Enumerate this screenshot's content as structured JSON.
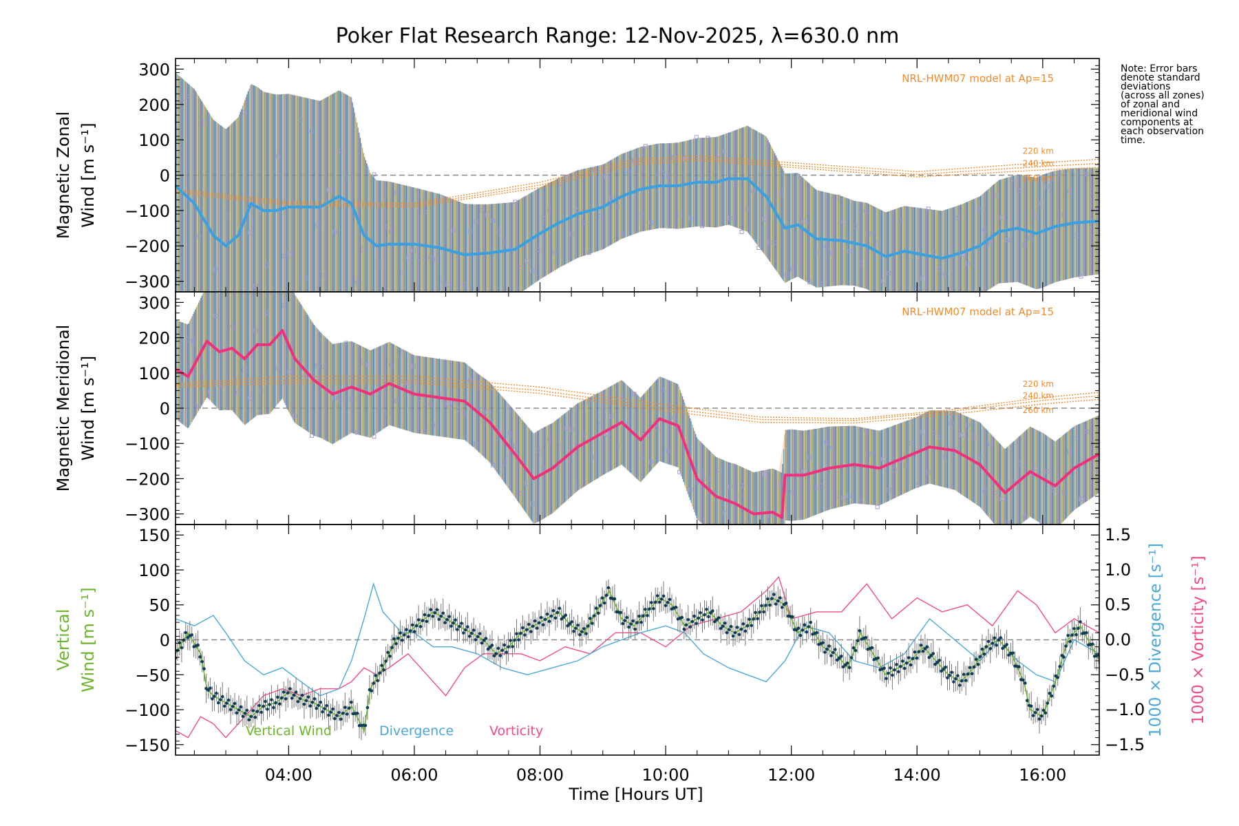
{
  "chart_data": {
    "title": "Poker Flat Research Range: 12-Nov-2025, λ=630.0 nm",
    "xlabel": "Time [Hours UT]",
    "xlim": [
      2.2,
      16.9
    ],
    "x_ticks": [
      4,
      6,
      8,
      10,
      12,
      14,
      16
    ],
    "x_tick_labels": [
      "04:00",
      "06:00",
      "08:00",
      "10:00",
      "12:00",
      "14:00",
      "16:00"
    ],
    "note": "Note: Error bars\ndenote standard\ndeviations\n(across all zones)\nof zonal and\nmeridional wind\ncomponents at\neach observation\ntime.",
    "colors": {
      "model": "#f08a28",
      "zonal_wind": "#3aa0e0",
      "meridional_wind": "#f0307a",
      "vertical_wind": "#6cb52c",
      "divergence": "#4aa8d8",
      "vorticity": "#f04a8a",
      "zone_points": "#a09ad0",
      "error_bars": "#4a6a8a"
    },
    "panels": [
      {
        "type": "line",
        "ylabel_line1": "Magnetic Zonal",
        "ylabel_line2": "Wind [m s⁻¹]",
        "ylim": [
          -330,
          330
        ],
        "y_ticks": [
          -300,
          -200,
          -100,
          0,
          100,
          200,
          300
        ],
        "y_tick_labels": [
          "−300",
          "−200",
          "−100",
          "0",
          "100",
          "200",
          "300"
        ],
        "model_label": "NRL-HWM07 model at Ap=15",
        "model_altitudes": [
          "220 km",
          "240 km",
          "260 km"
        ],
        "series": [
          {
            "name": "Zonal wind",
            "x": [
              2.2,
              2.5,
              2.8,
              3.0,
              3.2,
              3.4,
              3.6,
              3.8,
              4.0,
              4.2,
              4.5,
              4.8,
              5.0,
              5.2,
              5.4,
              5.6,
              6.0,
              6.4,
              6.8,
              7.2,
              7.6,
              8.0,
              8.3,
              8.6,
              9.0,
              9.3,
              9.6,
              9.9,
              10.2,
              10.5,
              10.8,
              11.0,
              11.3,
              11.6,
              11.9,
              12.1,
              12.4,
              12.8,
              13.2,
              13.5,
              13.8,
              14.1,
              14.4,
              14.7,
              15.0,
              15.3,
              15.6,
              15.9,
              16.2,
              16.5,
              16.9
            ],
            "values": [
              -30,
              -80,
              -170,
              -200,
              -170,
              -80,
              -100,
              -100,
              -90,
              -90,
              -90,
              -60,
              -80,
              -170,
              -200,
              -195,
              -195,
              -205,
              -225,
              -220,
              -210,
              -165,
              -135,
              -110,
              -90,
              -60,
              -40,
              -30,
              -30,
              -20,
              -20,
              -10,
              -10,
              -60,
              -150,
              -140,
              -180,
              -185,
              -200,
              -230,
              -215,
              -225,
              -235,
              -220,
              -200,
              -160,
              -150,
              -165,
              -145,
              -135,
              -130
            ]
          },
          {
            "name": "Model 220 km",
            "x": [
              2.2,
              4.0,
              6.0,
              8.0,
              9.5,
              10.5,
              12.0,
              14.0,
              16.0,
              16.9
            ],
            "values": [
              -40,
              -75,
              -80,
              -20,
              45,
              55,
              35,
              10,
              35,
              45
            ]
          },
          {
            "name": "Model 240 km",
            "x": [
              2.2,
              4.0,
              6.0,
              8.0,
              9.5,
              10.5,
              12.0,
              14.0,
              16.0,
              16.9
            ],
            "values": [
              -45,
              -80,
              -85,
              -28,
              38,
              48,
              28,
              2,
              25,
              33
            ]
          },
          {
            "name": "Model 260 km",
            "x": [
              2.2,
              4.0,
              6.0,
              8.0,
              9.5,
              10.5,
              12.0,
              14.0,
              16.0,
              16.9
            ],
            "values": [
              -50,
              -85,
              -90,
              -35,
              30,
              42,
              22,
              -5,
              15,
              22
            ]
          }
        ],
        "error_band": {
          "x": [
            2.2,
            3.0,
            3.5,
            4.0,
            4.5,
            5.0,
            5.3,
            6.0,
            7.0,
            8.0,
            9.0,
            10.0,
            11.0,
            11.6,
            12.0,
            13.0,
            14.0,
            15.0,
            16.0,
            16.9
          ],
          "half_width": [
            320,
            330,
            340,
            320,
            300,
            300,
            190,
            160,
            140,
            130,
            120,
            120,
            130,
            170,
            150,
            120,
            130,
            140,
            160,
            150
          ]
        }
      },
      {
        "type": "line",
        "ylabel_line1": "Magnetic Meridional",
        "ylabel_line2": "Wind [m s⁻¹]",
        "ylim": [
          -330,
          330
        ],
        "y_ticks": [
          -300,
          -200,
          -100,
          0,
          100,
          200,
          300
        ],
        "y_tick_labels": [
          "−300",
          "−200",
          "−100",
          "0",
          "100",
          "200",
          "300"
        ],
        "model_label": "NRL-HWM07 model at Ap=15",
        "model_altitudes": [
          "220 km",
          "240 km",
          "260 km"
        ],
        "series": [
          {
            "name": "Meridional wind",
            "x": [
              2.2,
              2.4,
              2.7,
              2.9,
              3.1,
              3.3,
              3.5,
              3.7,
              3.9,
              4.1,
              4.4,
              4.7,
              5.0,
              5.3,
              5.6,
              6.0,
              6.4,
              6.8,
              7.2,
              7.6,
              7.9,
              8.2,
              8.6,
              9.0,
              9.3,
              9.6,
              9.9,
              10.2,
              10.5,
              10.8,
              11.1,
              11.4,
              11.7,
              11.85,
              11.9,
              12.2,
              12.6,
              13.0,
              13.4,
              13.8,
              14.2,
              14.6,
              15.0,
              15.4,
              15.8,
              16.2,
              16.5,
              16.9
            ],
            "values": [
              110,
              90,
              190,
              160,
              170,
              140,
              180,
              180,
              220,
              140,
              80,
              40,
              60,
              40,
              70,
              40,
              30,
              20,
              -40,
              -130,
              -200,
              -170,
              -110,
              -70,
              -40,
              -90,
              -30,
              -50,
              -200,
              -250,
              -270,
              -300,
              -295,
              -310,
              -190,
              -190,
              -170,
              -160,
              -170,
              -140,
              -110,
              -120,
              -160,
              -240,
              -180,
              -220,
              -170,
              -130
            ]
          },
          {
            "name": "Model 220 km",
            "x": [
              2.2,
              4.0,
              6.0,
              8.0,
              10.0,
              11.5,
              13.0,
              14.5,
              16.0,
              16.9
            ],
            "values": [
              70,
              90,
              90,
              60,
              10,
              -25,
              -30,
              -5,
              30,
              45
            ]
          },
          {
            "name": "Model 240 km",
            "x": [
              2.2,
              4.0,
              6.0,
              8.0,
              10.0,
              11.5,
              13.0,
              14.5,
              16.0,
              16.9
            ],
            "values": [
              65,
              80,
              80,
              50,
              0,
              -32,
              -35,
              -10,
              22,
              35
            ]
          },
          {
            "name": "Model 260 km",
            "x": [
              2.2,
              4.0,
              6.0,
              8.0,
              10.0,
              11.5,
              13.0,
              14.5,
              16.0,
              16.9
            ],
            "values": [
              60,
              72,
              72,
              42,
              -8,
              -40,
              -42,
              -18,
              12,
              25
            ]
          }
        ],
        "error_band": {
          "x": [
            2.2,
            3.0,
            3.5,
            4.0,
            4.5,
            5.0,
            6.0,
            7.0,
            8.0,
            9.0,
            10.0,
            11.0,
            12.0,
            13.0,
            14.0,
            15.0,
            16.0,
            16.9
          ],
          "half_width": [
            140,
            170,
            200,
            190,
            150,
            130,
            110,
            110,
            130,
            120,
            120,
            110,
            130,
            110,
            100,
            120,
            130,
            110
          ]
        }
      },
      {
        "type": "line",
        "ylabel_line1": "Vertical",
        "ylabel_line2": "Wind [m s⁻¹]",
        "ylim": [
          -165,
          165
        ],
        "y_ticks": [
          -150,
          -100,
          -50,
          0,
          50,
          100,
          150
        ],
        "y_tick_labels": [
          "−150",
          "−100",
          "−50",
          "0",
          "50",
          "100",
          "150"
        ],
        "y2_label_divergence": "1000 × Divergence [s⁻¹]",
        "y2_label_vorticity": "1000 × Vorticity [s⁻¹]",
        "y2lim": [
          -1.65,
          1.65
        ],
        "y2_ticks": [
          -1.5,
          -1.0,
          -0.5,
          0.0,
          0.5,
          1.0,
          1.5
        ],
        "y2_tick_labels": [
          "−1.5",
          "−1.0",
          "−0.5",
          "0.0",
          "0.5",
          "1.0",
          "1.5"
        ],
        "legend": [
          "Vertical Wind",
          "Divergence",
          "Vorticity"
        ],
        "series": [
          {
            "name": "Vertical Wind",
            "x": [
              2.2,
              2.4,
              2.6,
              2.7,
              2.8,
              3.0,
              3.2,
              3.4,
              3.6,
              3.8,
              4.0,
              4.2,
              4.4,
              4.6,
              4.8,
              5.0,
              5.2,
              5.3,
              5.5,
              5.7,
              5.9,
              6.1,
              6.3,
              6.5,
              6.7,
              6.9,
              7.1,
              7.3,
              7.5,
              7.7,
              7.9,
              8.1,
              8.3,
              8.5,
              8.7,
              8.9,
              9.1,
              9.3,
              9.5,
              9.7,
              9.9,
              10.1,
              10.3,
              10.5,
              10.7,
              10.9,
              11.1,
              11.3,
              11.5,
              11.7,
              11.9,
              12.1,
              12.3,
              12.5,
              12.7,
              12.9,
              13.1,
              13.3,
              13.5,
              13.7,
              13.9,
              14.1,
              14.3,
              14.5,
              14.7,
              14.9,
              15.1,
              15.3,
              15.5,
              15.7,
              15.8,
              16.0,
              16.2,
              16.4,
              16.6,
              16.9
            ],
            "values": [
              -20,
              10,
              -20,
              -70,
              -80,
              -90,
              -100,
              -110,
              -95,
              -90,
              -75,
              -85,
              -90,
              -100,
              -110,
              -95,
              -130,
              -70,
              -40,
              0,
              10,
              25,
              40,
              30,
              20,
              10,
              0,
              -20,
              -10,
              10,
              20,
              30,
              40,
              20,
              10,
              40,
              70,
              30,
              20,
              40,
              60,
              50,
              20,
              30,
              40,
              20,
              10,
              20,
              40,
              60,
              50,
              10,
              20,
              -10,
              -20,
              -40,
              10,
              -20,
              -50,
              -40,
              -30,
              -10,
              -30,
              -50,
              -60,
              -40,
              -10,
              0,
              -20,
              -60,
              -100,
              -110,
              -60,
              0,
              20,
              -30
            ]
          },
          {
            "name": "Divergence",
            "x": [
              2.2,
              2.5,
              2.8,
              3.0,
              3.3,
              3.6,
              3.9,
              4.2,
              4.5,
              4.8,
              5.0,
              5.2,
              5.35,
              5.5,
              5.8,
              6.0,
              6.3,
              6.6,
              7.0,
              7.4,
              7.8,
              8.2,
              8.6,
              9.0,
              9.3,
              9.6,
              10.0,
              10.3,
              10.6,
              11.0,
              11.3,
              11.6,
              11.9,
              12.2,
              12.6,
              13.0,
              13.4,
              13.8,
              14.2,
              14.6,
              15.0,
              15.3,
              15.6,
              15.9,
              16.2,
              16.5,
              16.9
            ],
            "values": [
              0.3,
              0.2,
              0.35,
              0.1,
              -0.3,
              -0.5,
              -0.4,
              -0.6,
              -0.8,
              -0.7,
              -0.3,
              0.3,
              0.8,
              0.4,
              0.1,
              0.1,
              -0.1,
              -0.1,
              -0.2,
              -0.4,
              -0.5,
              -0.4,
              -0.3,
              -0.1,
              0.0,
              0.1,
              0.2,
              0.1,
              -0.2,
              -0.4,
              -0.5,
              -0.6,
              -0.3,
              0.2,
              0.1,
              -0.3,
              -0.4,
              -0.2,
              0.3,
              0.0,
              -0.3,
              0.0,
              -0.3,
              -0.5,
              -0.6,
              0.0,
              -0.2
            ]
          },
          {
            "name": "Vorticity",
            "x": [
              2.2,
              2.4,
              2.6,
              2.8,
              3.0,
              3.3,
              3.6,
              3.9,
              4.2,
              4.5,
              4.8,
              5.0,
              5.2,
              5.4,
              5.6,
              5.9,
              6.2,
              6.5,
              6.8,
              7.1,
              7.4,
              7.7,
              8.0,
              8.4,
              8.8,
              9.2,
              9.6,
              10.0,
              10.4,
              10.8,
              11.2,
              11.6,
              11.8,
              12.0,
              12.4,
              12.8,
              13.2,
              13.6,
              14.0,
              14.4,
              14.8,
              15.2,
              15.6,
              15.9,
              16.2,
              16.5,
              16.9
            ],
            "values": [
              -1.3,
              -1.4,
              -1.1,
              -1.2,
              -1.4,
              -1.1,
              -0.8,
              -0.7,
              -0.8,
              -0.7,
              -0.7,
              -0.6,
              -0.4,
              -0.5,
              -0.4,
              -0.2,
              -0.5,
              -0.8,
              -0.4,
              -0.2,
              -0.2,
              -0.2,
              -0.3,
              -0.1,
              -0.2,
              0.1,
              0.1,
              -0.1,
              0.2,
              0.3,
              0.4,
              0.7,
              0.9,
              0.3,
              0.4,
              0.4,
              0.8,
              0.3,
              0.6,
              0.4,
              0.5,
              0.2,
              0.7,
              0.5,
              0.1,
              0.3,
              0.1
            ]
          }
        ]
      }
    ]
  }
}
